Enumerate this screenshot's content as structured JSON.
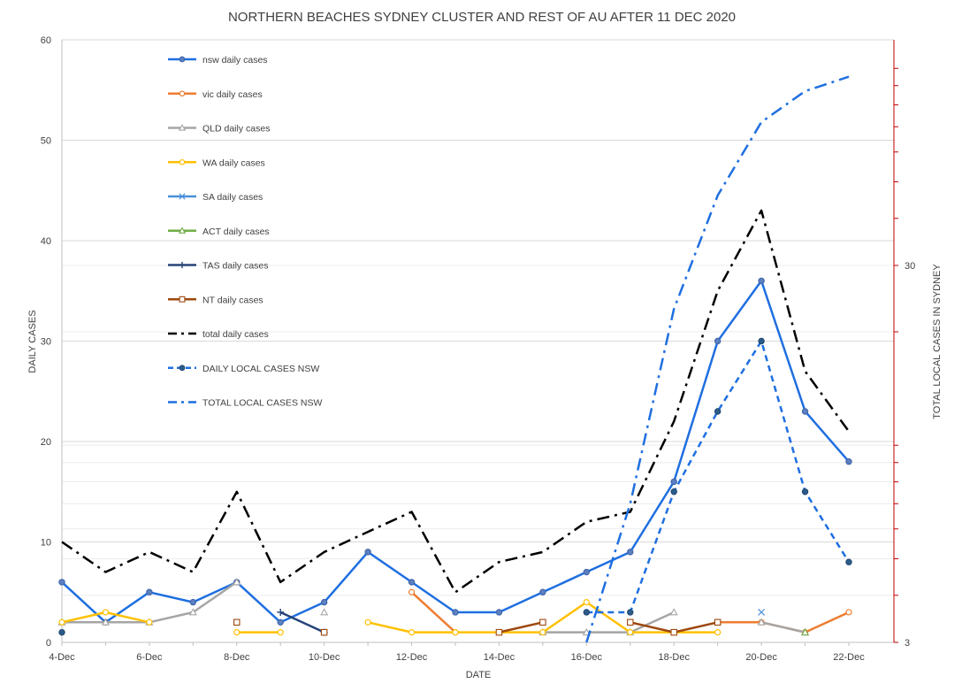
{
  "chart_data": {
    "type": "line",
    "title": "NORTHERN BEACHES SYDNEY CLUSTER AND REST OF AU AFTER 11 DEC 2020",
    "xlabel": "DATE",
    "ylabel": "DAILY CASES",
    "y2label": "TOTAL LOCAL CASES IN SYDNEY",
    "categories": [
      "4-Dec",
      "5-Dec",
      "6-Dec",
      "7-Dec",
      "8-Dec",
      "9-Dec",
      "10-Dec",
      "11-Dec",
      "12-Dec",
      "13-Dec",
      "14-Dec",
      "15-Dec",
      "16-Dec",
      "17-Dec",
      "18-Dec",
      "19-Dec",
      "20-Dec",
      "21-Dec",
      "22-Dec"
    ],
    "x_tick_labels": [
      "4-Dec",
      "6-Dec",
      "8-Dec",
      "10-Dec",
      "12-Dec",
      "14-Dec",
      "16-Dec",
      "18-Dec",
      "20-Dec",
      "22-Dec"
    ],
    "ylim": [
      0,
      60
    ],
    "yticks": [
      0,
      10,
      20,
      30,
      40,
      50,
      60
    ],
    "y2_ticks": [
      "3",
      "30"
    ],
    "y2_scale": "log",
    "grid": true,
    "legend_position": "top-left",
    "series": [
      {
        "name": "nsw daily cases",
        "axis": "left",
        "color": "#1f6fe0",
        "dash": "solid",
        "marker": "circle",
        "values": [
          6,
          2,
          5,
          4,
          6,
          2,
          4,
          9,
          6,
          3,
          3,
          5,
          7,
          9,
          16,
          30,
          36,
          23,
          18
        ]
      },
      {
        "name": "vic daily cases",
        "axis": "left",
        "color": "#ed7d31",
        "dash": "solid",
        "marker": "circle-open",
        "values": [
          null,
          null,
          null,
          null,
          null,
          null,
          null,
          null,
          5,
          1,
          null,
          null,
          null,
          null,
          null,
          2,
          2,
          1,
          3
        ]
      },
      {
        "name": "QLD daily cases",
        "axis": "left",
        "color": "#a5a5a5",
        "dash": "solid",
        "marker": "triangle-open",
        "values": [
          2,
          2,
          2,
          3,
          6,
          null,
          3,
          null,
          null,
          null,
          null,
          1,
          1,
          1,
          3,
          null,
          2,
          1,
          null
        ]
      },
      {
        "name": "WA  daily cases",
        "axis": "left",
        "color": "#ffc000",
        "dash": "solid",
        "marker": "circle-open",
        "values": [
          2,
          3,
          2,
          null,
          1,
          1,
          null,
          2,
          1,
          1,
          1,
          1,
          4,
          1,
          1,
          1,
          null,
          null,
          null
        ]
      },
      {
        "name": "SA  daily cases",
        "axis": "left",
        "color": "#4a90d9",
        "dash": "solid",
        "marker": "x",
        "values": [
          null,
          null,
          null,
          null,
          null,
          null,
          null,
          null,
          null,
          null,
          null,
          null,
          null,
          null,
          null,
          null,
          3,
          null,
          null
        ]
      },
      {
        "name": "ACT daily cases",
        "axis": "left",
        "color": "#70ad47",
        "dash": "solid",
        "marker": "triangle-open",
        "values": [
          null,
          null,
          null,
          null,
          null,
          null,
          null,
          null,
          null,
          null,
          null,
          null,
          null,
          null,
          null,
          null,
          null,
          1,
          null
        ]
      },
      {
        "name": "TAS daily cases",
        "axis": "left",
        "color": "#264478",
        "dash": "solid",
        "marker": "plus",
        "values": [
          null,
          null,
          null,
          null,
          null,
          3,
          1,
          null,
          null,
          null,
          null,
          null,
          null,
          null,
          null,
          null,
          null,
          null,
          null
        ]
      },
      {
        "name": "NT daily cases",
        "axis": "left",
        "color": "#9e480e",
        "dash": "solid",
        "marker": "square-open",
        "values": [
          null,
          null,
          null,
          null,
          2,
          null,
          1,
          null,
          null,
          null,
          1,
          2,
          null,
          2,
          1,
          2,
          null,
          null,
          null
        ]
      },
      {
        "name": "total daily cases",
        "axis": "left",
        "color": "#000000",
        "dash": "dashdot",
        "marker": "none",
        "values": [
          10,
          7,
          9,
          7,
          15,
          6,
          9,
          11,
          13,
          5,
          8,
          9,
          12,
          13,
          22,
          35,
          43,
          27,
          21
        ]
      },
      {
        "name": "DAILY LOCAL CASES NSW",
        "axis": "left",
        "color": "#1f6fe0",
        "dash": "dash",
        "marker": "circle-dark",
        "values": [
          1,
          null,
          null,
          null,
          null,
          null,
          null,
          null,
          null,
          null,
          null,
          null,
          3,
          3,
          15,
          23,
          30,
          15,
          8
        ]
      },
      {
        "name": "TOTAL LOCAL CASES  NSW",
        "axis": "right",
        "color": "#1f6fe0",
        "dash": "dashdot",
        "marker": "none",
        "values": [
          null,
          null,
          null,
          null,
          null,
          null,
          null,
          null,
          null,
          null,
          null,
          null,
          3,
          7,
          23,
          46,
          72,
          87,
          95
        ]
      }
    ]
  }
}
